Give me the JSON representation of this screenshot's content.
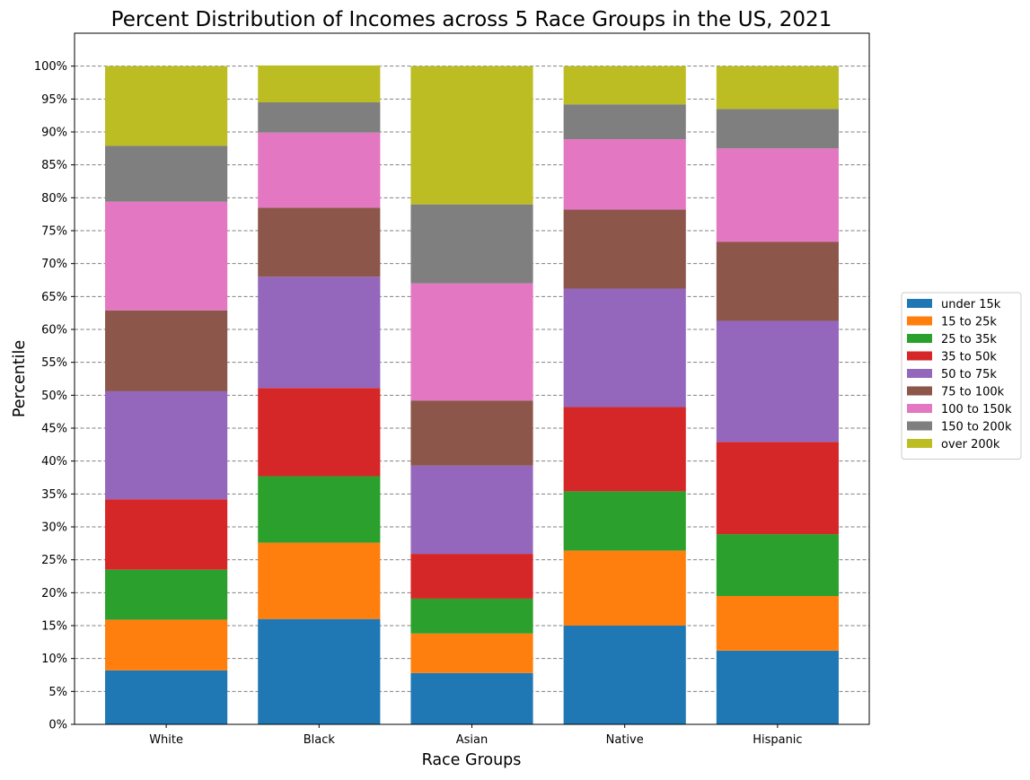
{
  "chart_data": {
    "type": "bar",
    "stacked": true,
    "title": "Percent Distribution of Incomes across 5 Race Groups in the US, 2021",
    "xlabel": "Race Groups",
    "ylabel": "Percentile",
    "ylim": [
      0,
      105
    ],
    "yticks": [
      "0%",
      "5%",
      "10%",
      "15%",
      "20%",
      "25%",
      "30%",
      "35%",
      "40%",
      "45%",
      "50%",
      "55%",
      "60%",
      "65%",
      "70%",
      "75%",
      "80%",
      "85%",
      "90%",
      "95%",
      "100%"
    ],
    "grid": "horizontal dashed",
    "legend_position": "right",
    "categories": [
      "White",
      "Black",
      "Asian",
      "Native",
      "Hispanic"
    ],
    "series": [
      {
        "name": "under 15k",
        "color": "#1f77b4",
        "values": [
          8.2,
          16.0,
          7.8,
          15.0,
          11.2
        ]
      },
      {
        "name": "15 to 25k",
        "color": "#ff7f0e",
        "values": [
          7.7,
          11.6,
          6.0,
          11.4,
          8.3
        ]
      },
      {
        "name": "25 to 35k",
        "color": "#2ca02c",
        "values": [
          7.6,
          10.1,
          5.3,
          9.0,
          9.4
        ]
      },
      {
        "name": "35 to 50k",
        "color": "#d62728",
        "values": [
          10.7,
          13.4,
          6.8,
          12.8,
          14.0
        ]
      },
      {
        "name": "50 to 75k",
        "color": "#9467bd",
        "values": [
          16.4,
          16.9,
          13.4,
          18.0,
          18.4
        ]
      },
      {
        "name": "75 to 100k",
        "color": "#8c564b",
        "values": [
          12.3,
          10.5,
          9.9,
          12.0,
          12.0
        ]
      },
      {
        "name": "100 to 150k",
        "color": "#e377c2",
        "values": [
          16.5,
          11.4,
          17.8,
          10.7,
          14.2
        ]
      },
      {
        "name": "150 to 200k",
        "color": "#7f7f7f",
        "values": [
          8.5,
          4.6,
          12.0,
          5.3,
          6.0
        ]
      },
      {
        "name": "over 200k",
        "color": "#bcbd22",
        "values": [
          12.1,
          5.6,
          21.0,
          5.8,
          6.5
        ]
      }
    ]
  }
}
